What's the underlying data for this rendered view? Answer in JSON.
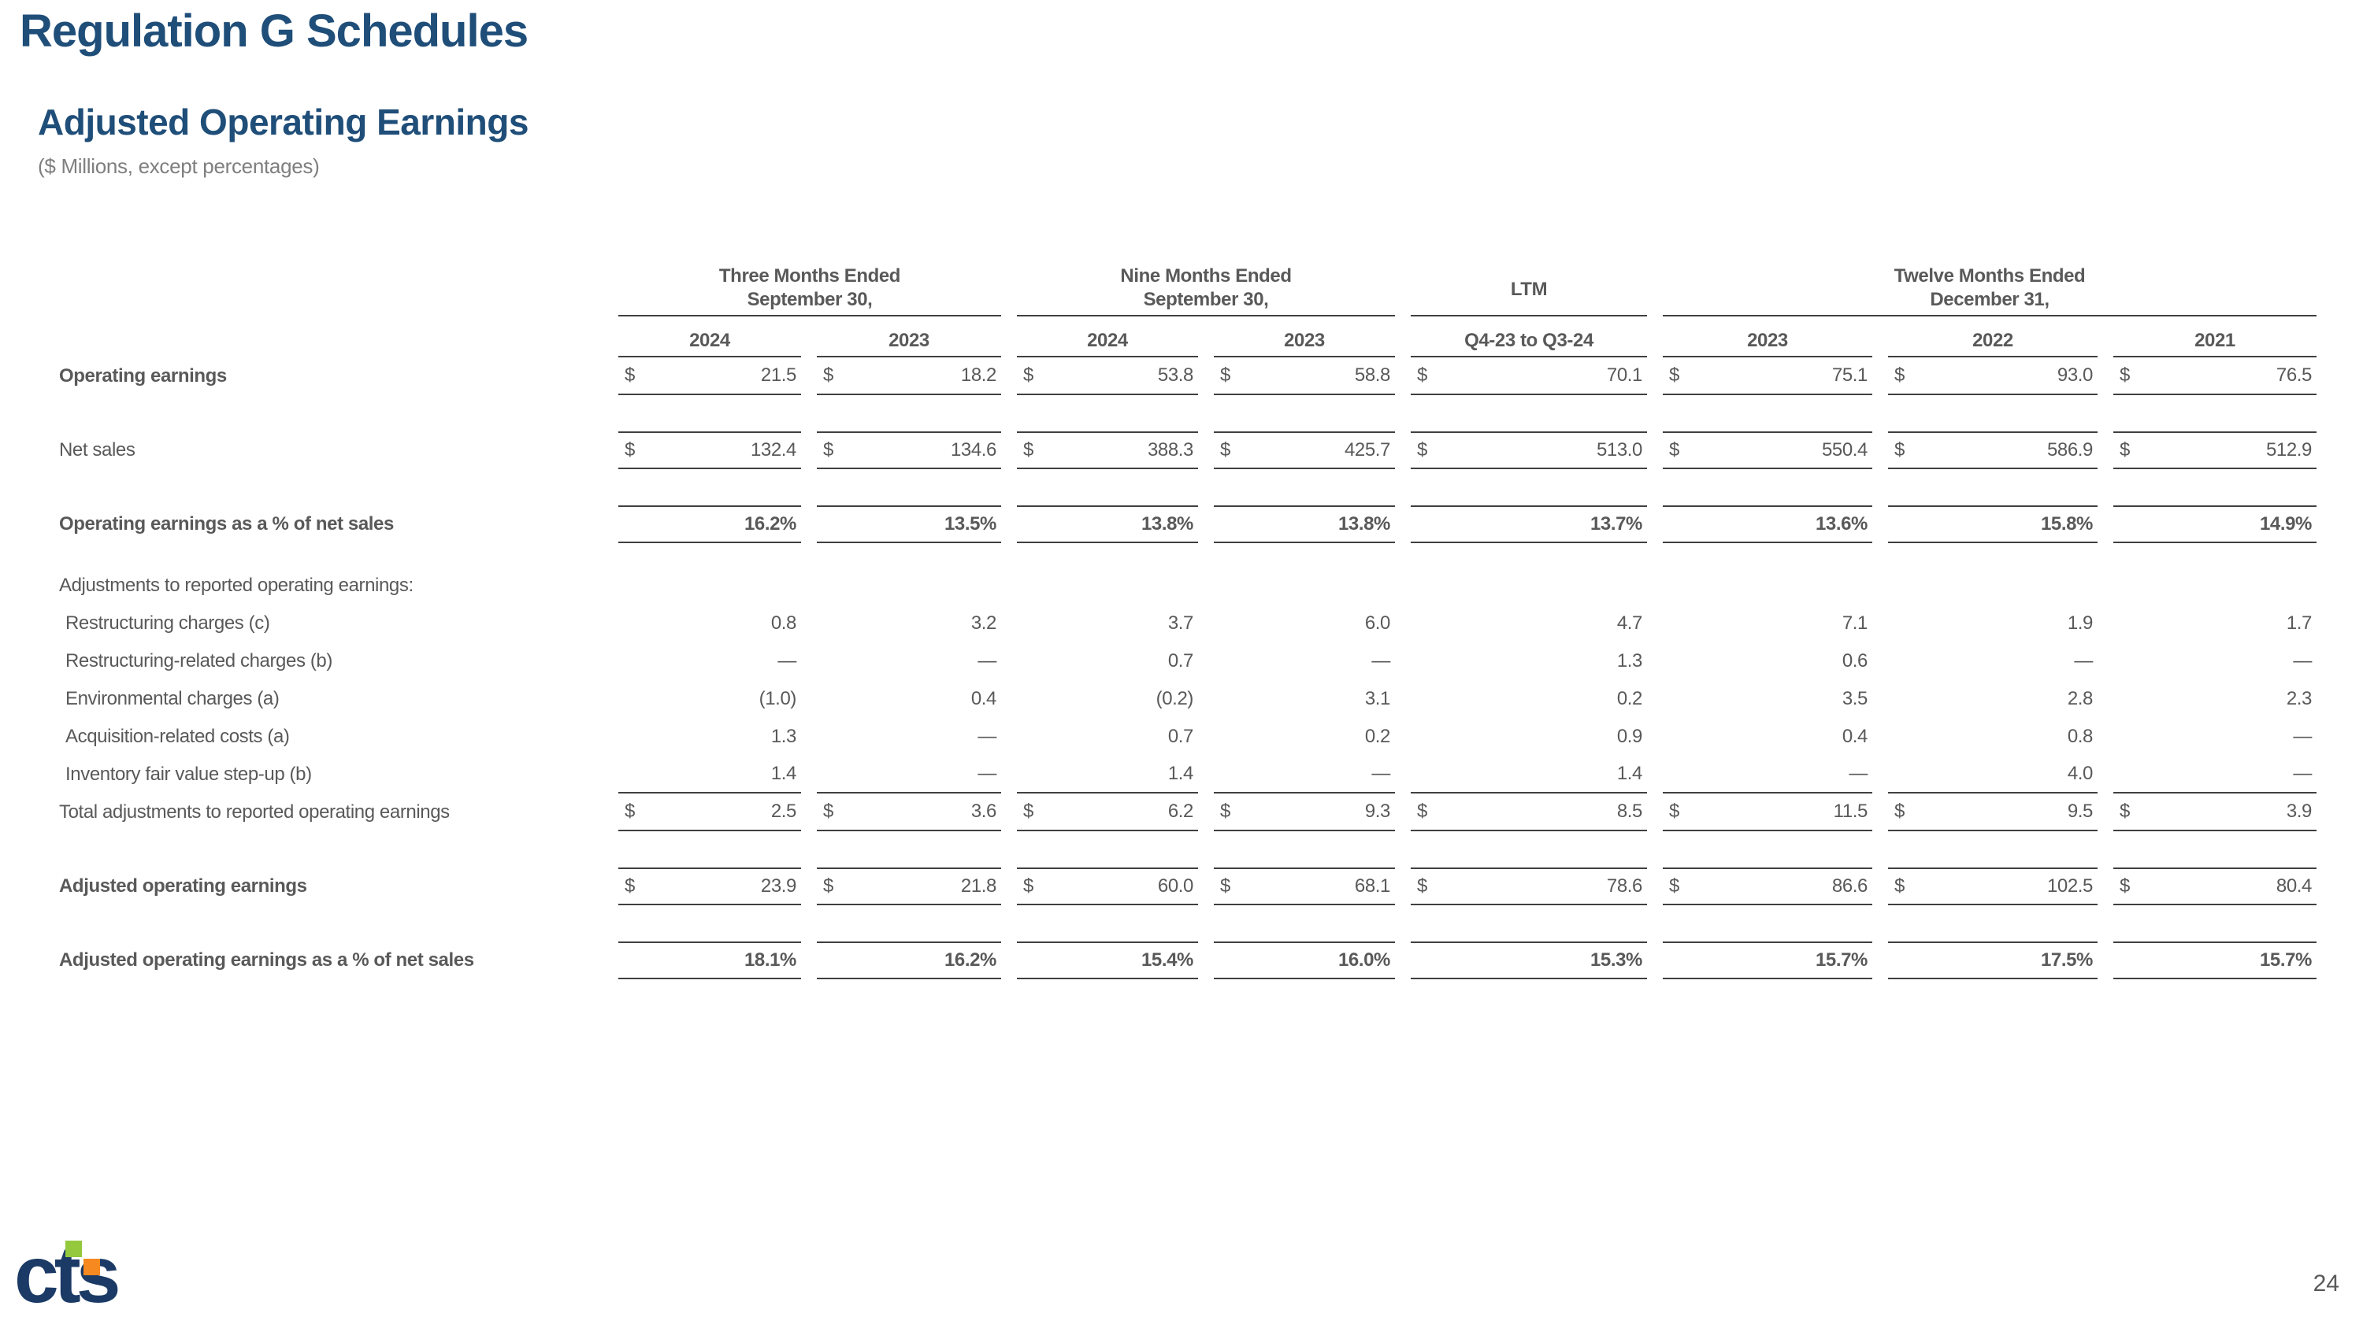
{
  "slide": {
    "title": "Regulation G Schedules",
    "subtitle": "Adjusted Operating Earnings",
    "units_note": "($ Millions, except percentages)",
    "page_number": "24"
  },
  "logo": {
    "text": "cts"
  },
  "colors": {
    "title_navy": "#1F4E79",
    "table_text": "#595959",
    "rule_line": "#404040",
    "logo_navy": "#1b3a66",
    "logo_green": "#94c83d",
    "logo_orange": "#f6891f"
  },
  "table": {
    "column_groups": [
      {
        "title_line1": "Three Months Ended",
        "title_line2": "September 30,",
        "span": 2
      },
      {
        "title_line1": "Nine Months Ended",
        "title_line2": "September 30,",
        "span": 2
      },
      {
        "title_line1": "LTM",
        "title_line2": "",
        "span": 1
      },
      {
        "title_line1": "Twelve Months Ended",
        "title_line2": "December 31,",
        "span": 3
      }
    ],
    "column_headers": [
      "2024",
      "2023",
      "2024",
      "2023",
      "Q4-23 to Q3-24",
      "2023",
      "2022",
      "2021"
    ],
    "rows": [
      {
        "label": "Operating earnings",
        "label_bold": true,
        "dollar": true,
        "borders": "bottom",
        "values": [
          "21.5",
          "18.2",
          "53.8",
          "58.8",
          "70.1",
          "75.1",
          "93.0",
          "76.5"
        ]
      },
      {
        "label": "Net sales",
        "dollar": true,
        "borders": "both",
        "spacer": 46,
        "values": [
          "132.4",
          "134.6",
          "388.3",
          "425.7",
          "513.0",
          "550.4",
          "586.9",
          "512.9"
        ]
      },
      {
        "label": "Operating earnings as a % of net sales",
        "label_bold": true,
        "values_bold": true,
        "borders": "both",
        "spacer": 46,
        "values": [
          "16.2%",
          "13.5%",
          "13.8%",
          "13.8%",
          "13.7%",
          "13.6%",
          "15.8%",
          "14.9%"
        ]
      },
      {
        "label": "Adjustments to reported operating earnings:",
        "spacer": 30,
        "values": [
          "",
          "",
          "",
          "",
          "",
          "",
          "",
          ""
        ]
      },
      {
        "label": "Restructuring charges (c)",
        "indent": true,
        "values": [
          "0.8",
          "3.2",
          "3.7",
          "6.0",
          "4.7",
          "7.1",
          "1.9",
          "1.7"
        ]
      },
      {
        "label": "Restructuring-related charges (b)",
        "indent": true,
        "values": [
          "—",
          "—",
          "0.7",
          "—",
          "1.3",
          "0.6",
          "—",
          "—"
        ]
      },
      {
        "label": "Environmental charges (a)",
        "indent": true,
        "values": [
          "(1.0)",
          "0.4",
          "(0.2)",
          "3.1",
          "0.2",
          "3.5",
          "2.8",
          "2.3"
        ]
      },
      {
        "label": "Acquisition-related costs (a)",
        "indent": true,
        "values": [
          "1.3",
          "—",
          "0.7",
          "0.2",
          "0.9",
          "0.4",
          "0.8",
          "—"
        ]
      },
      {
        "label": "Inventory fair value step-up (b)",
        "indent": true,
        "borders": "bottom",
        "values": [
          "1.4",
          "—",
          "1.4",
          "—",
          "1.4",
          "—",
          "4.0",
          "—"
        ]
      },
      {
        "label": "Total adjustments to reported operating earnings",
        "dollar": true,
        "borders": "bottom",
        "values": [
          "2.5",
          "3.6",
          "6.2",
          "9.3",
          "8.5",
          "11.5",
          "9.5",
          "3.9"
        ]
      },
      {
        "label": "Adjusted operating earnings",
        "label_bold": true,
        "dollar": true,
        "borders": "both",
        "spacer": 46,
        "values": [
          "23.9",
          "21.8",
          "60.0",
          "68.1",
          "78.6",
          "86.6",
          "102.5",
          "80.4"
        ]
      },
      {
        "label": "Adjusted operating earnings as a % of net sales",
        "label_bold": true,
        "values_bold": true,
        "borders": "both",
        "spacer": 46,
        "values": [
          "18.1%",
          "16.2%",
          "15.4%",
          "16.0%",
          "15.3%",
          "15.7%",
          "17.5%",
          "15.7%"
        ]
      }
    ]
  }
}
